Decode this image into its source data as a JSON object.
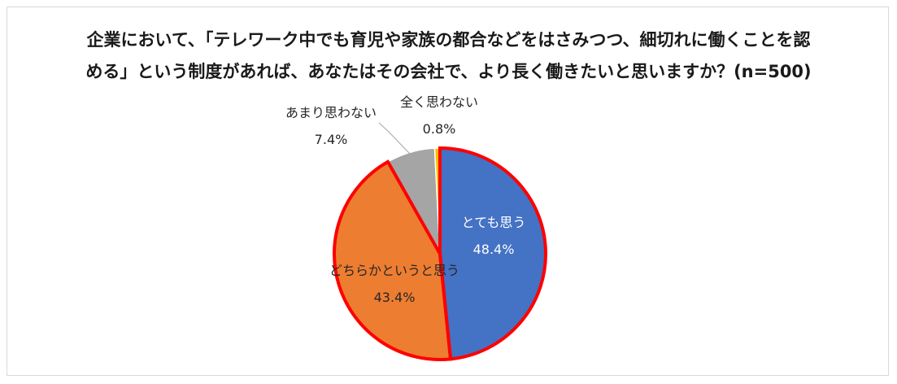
{
  "title_line1": "企業において、「テレワーク中でも育児や家族の都合などをはさみつつ、細切れに働くことを認",
  "title_line2": "める」という制度があれば、あなたはその会社で、より長く働きたいと思いますか？(n=500)",
  "chart_data": {
    "type": "pie",
    "title": "企業において、「テレワーク中でも育児や家族の都合などをはさみつつ、細切れに働くことを認める」という制度があれば、あなたはその会社で、より長く働きたいと思いますか？(n=500)",
    "slices": [
      {
        "label": "とても思う",
        "value": 48.4,
        "value_text": "48.4%",
        "color": "#4472c4"
      },
      {
        "label": "どちらかというと思う",
        "value": 43.4,
        "value_text": "43.4%",
        "color": "#ed7d31"
      },
      {
        "label": "あまり思わない",
        "value": 7.4,
        "value_text": "7.4%",
        "color": "#a5a5a5"
      },
      {
        "label": "全く思わない",
        "value": 0.8,
        "value_text": "0.8%",
        "color": "#ffc000"
      }
    ],
    "highlight_color": "#ff0000",
    "highlighted_slices": [
      "とても思う",
      "どちらかというと思う"
    ]
  }
}
